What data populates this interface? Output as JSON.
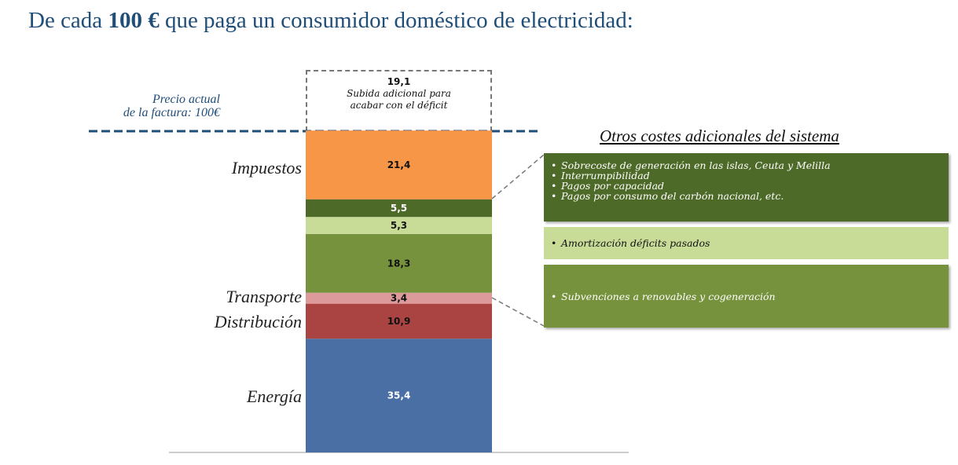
{
  "title": {
    "prefix": "De cada ",
    "amount": "100 €",
    "suffix": " que paga un consumidor doméstico de electricidad:"
  },
  "price_label": {
    "line1": "Precio actual",
    "line2": "de la factura: 100€"
  },
  "deficit": {
    "value": "19,1",
    "line1": "Subida adicional para",
    "line2": "acabar con el déficit"
  },
  "side_labels": {
    "taxes": "Impuestos",
    "transport": "Transporte",
    "distribution": "Distribución",
    "energy": "Energía"
  },
  "others": {
    "title": "Otros costes adicionales del sistema",
    "box1_items": [
      "Sobrecoste de generación en las islas, Ceuta y Melilla",
      "Interrumpibilidad",
      "Pagos por capacidad",
      "Pagos por consumo del carbón nacional, etc."
    ],
    "box2_items": [
      "Amortización déficits pasados"
    ],
    "box3_items": [
      "Subvenciones a renovables y cogeneración"
    ]
  },
  "chart_data": {
    "type": "bar",
    "stacked": true,
    "categories": [
      ""
    ],
    "segments": [
      {
        "label": "35,4",
        "value": 35.4,
        "color": "#4a6fa5",
        "text_color": "#ffffff"
      },
      {
        "label": "10,9",
        "value": 10.9,
        "color": "#a94442",
        "text_color": "#111111"
      },
      {
        "label": "3,4",
        "value": 3.4,
        "color": "#dc9a9a",
        "text_color": "#111111"
      },
      {
        "label": "18,3",
        "value": 18.3,
        "color": "#76923c",
        "text_color": "#111111"
      },
      {
        "label": "5,3",
        "value": 5.3,
        "color": "#c8dc98",
        "text_color": "#111111"
      },
      {
        "label": "5,5",
        "value": 5.5,
        "color": "#4e6a28",
        "text_color": "#ffffff"
      },
      {
        "label": "21,4",
        "value": 21.4,
        "color": "#f79646",
        "text_color": "#111111"
      }
    ],
    "additional": {
      "label": "19,1",
      "value": 19.1
    },
    "reference_line": 100
  }
}
